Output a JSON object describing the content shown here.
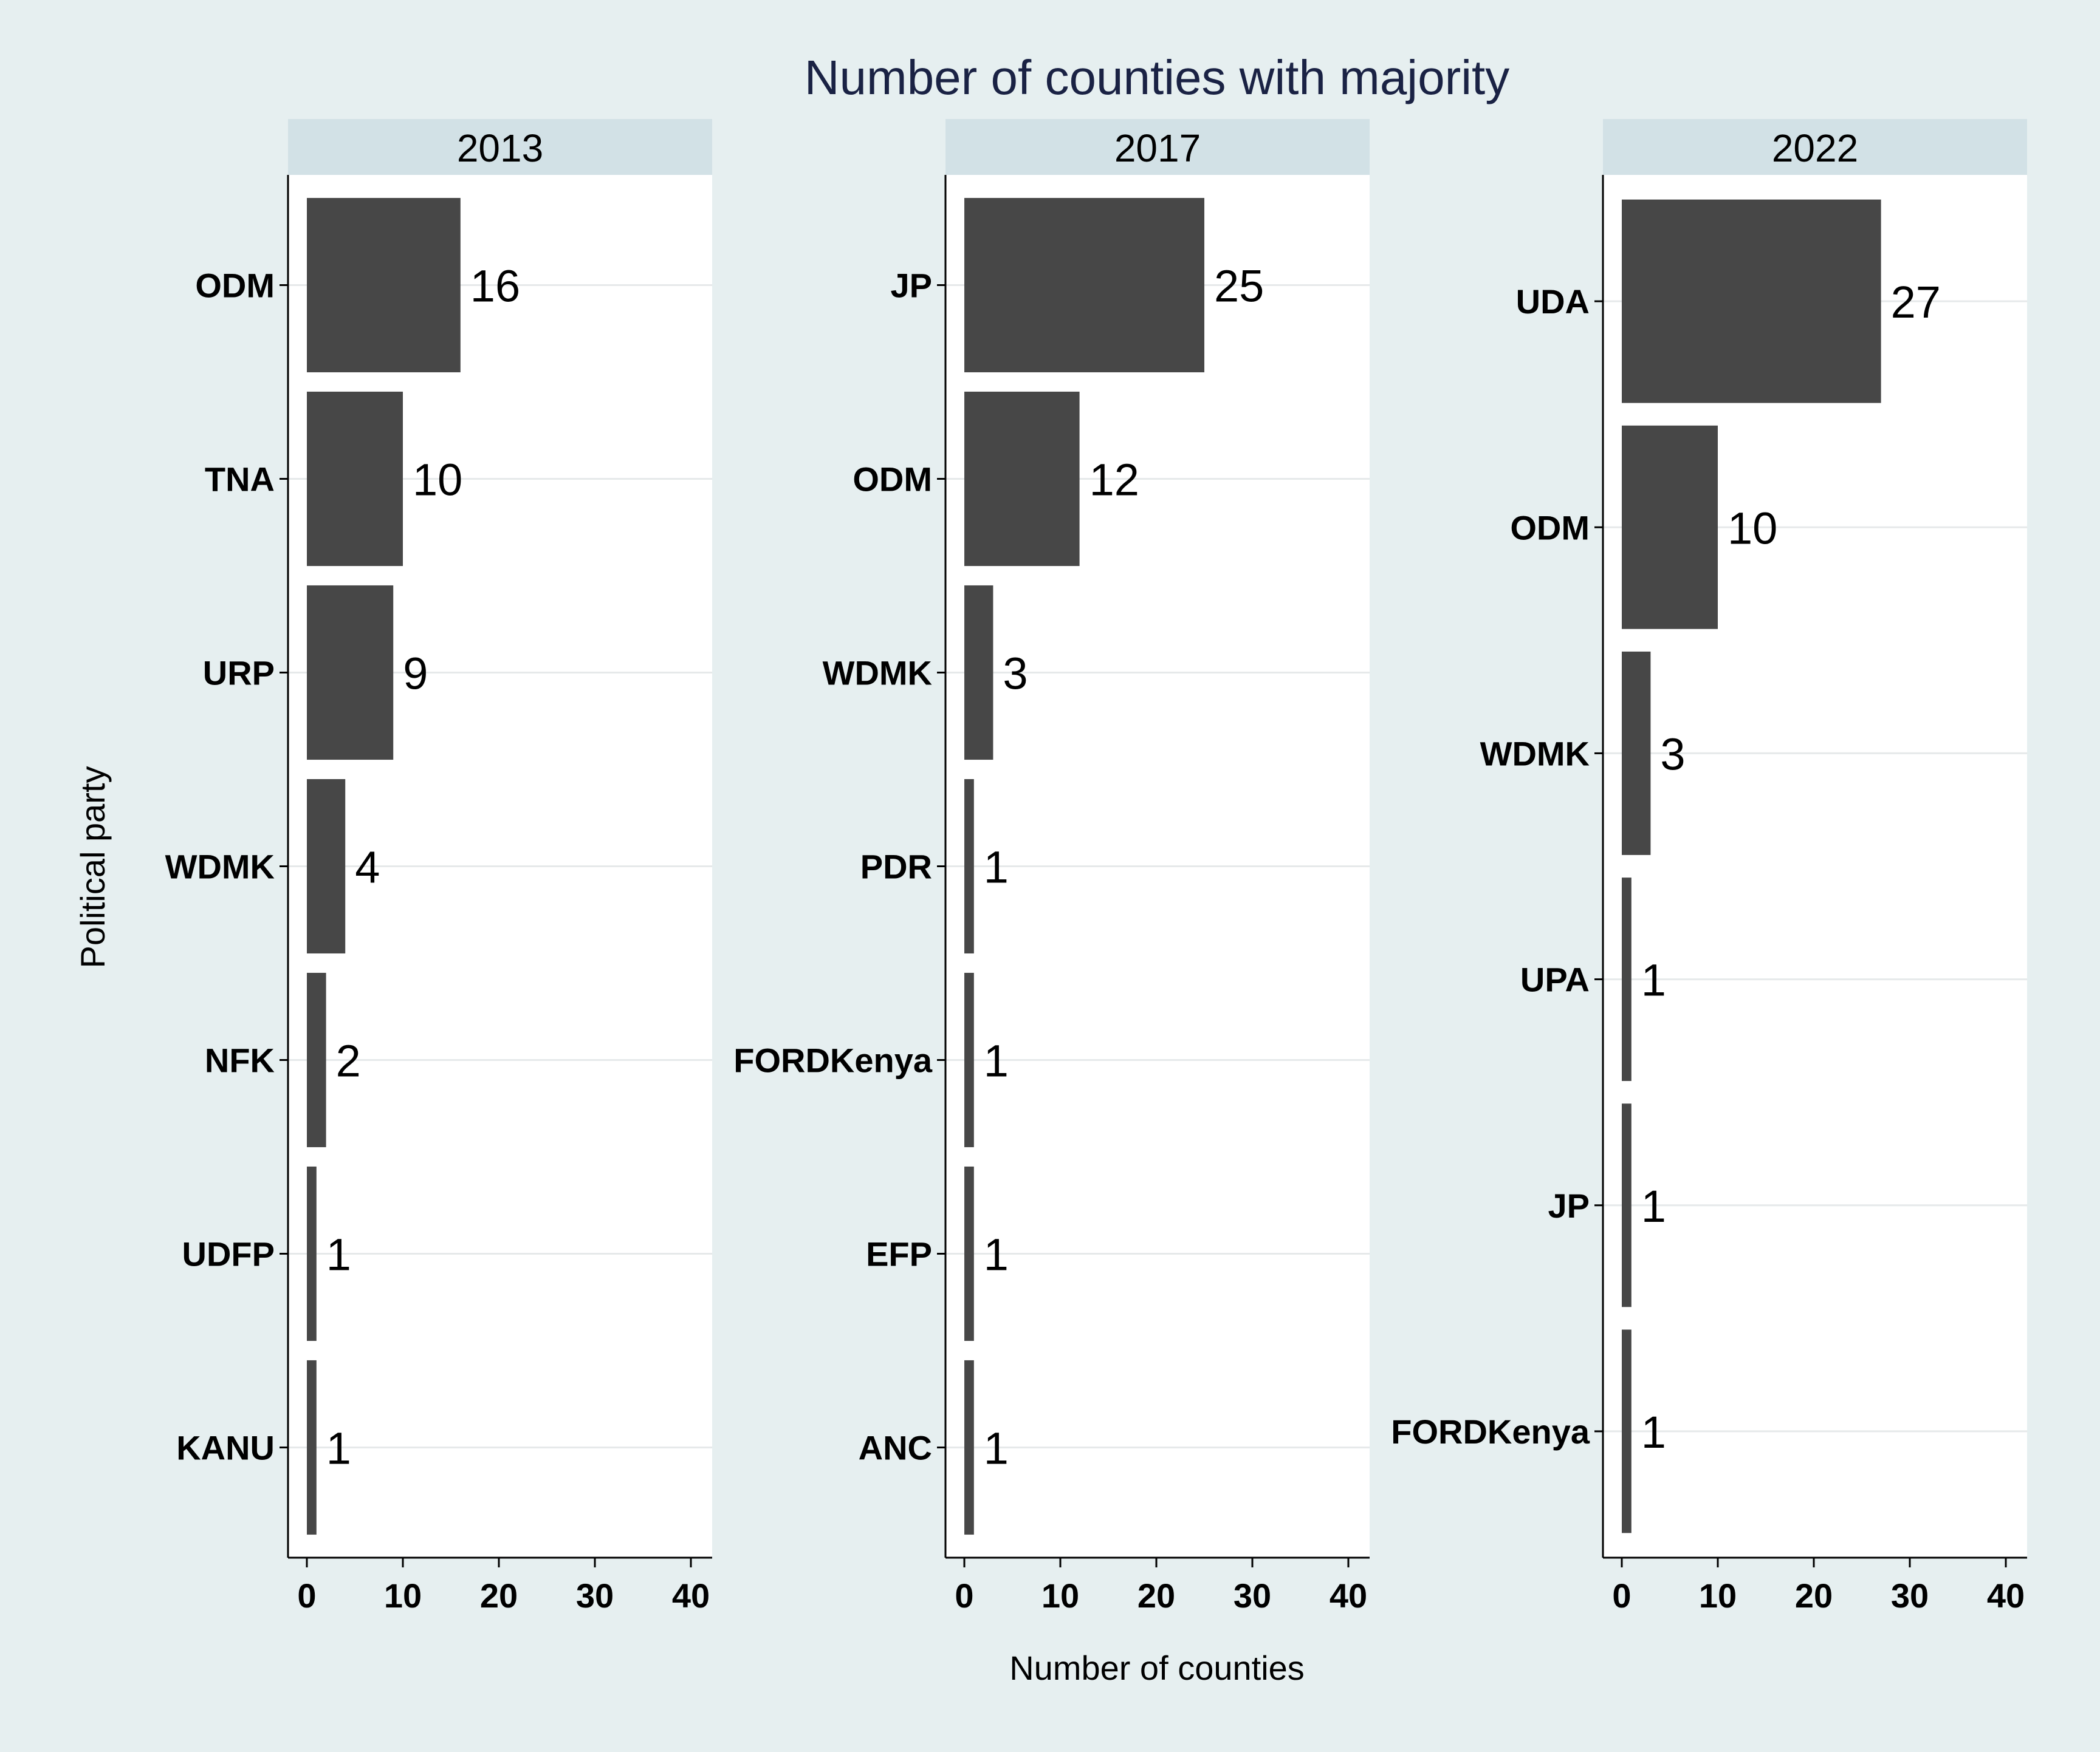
{
  "chart_data": {
    "type": "bar",
    "orientation": "horizontal",
    "title": "Number of counties with majority",
    "xlabel": "Number of counties",
    "ylabel": "Political party",
    "xlim": [
      0,
      41
    ],
    "xticks": [
      0,
      10,
      20,
      30,
      40
    ],
    "grid": true,
    "legend": "none",
    "colors": {
      "background": "#e6eff0",
      "panel": "#ffffff",
      "strip": "#d2e1e6",
      "bar": "#474747",
      "title": "#1a2244",
      "text": "#000000",
      "grid": "#e6e9ea"
    },
    "panels": [
      {
        "label": "2013",
        "categories": [
          "ODM",
          "TNA",
          "URP",
          "WDMK",
          "NFK",
          "UDFP",
          "KANU"
        ],
        "values": [
          16,
          10,
          9,
          4,
          2,
          1,
          1
        ]
      },
      {
        "label": "2017",
        "categories": [
          "JP",
          "ODM",
          "WDMK",
          "PDR",
          "FORDKenya",
          "EFP",
          "ANC"
        ],
        "values": [
          25,
          12,
          3,
          1,
          1,
          1,
          1
        ]
      },
      {
        "label": "2022",
        "categories": [
          "UDA",
          "ODM",
          "WDMK",
          "UPA",
          "JP",
          "FORDKenya"
        ],
        "values": [
          27,
          10,
          3,
          1,
          1,
          1
        ]
      }
    ]
  }
}
